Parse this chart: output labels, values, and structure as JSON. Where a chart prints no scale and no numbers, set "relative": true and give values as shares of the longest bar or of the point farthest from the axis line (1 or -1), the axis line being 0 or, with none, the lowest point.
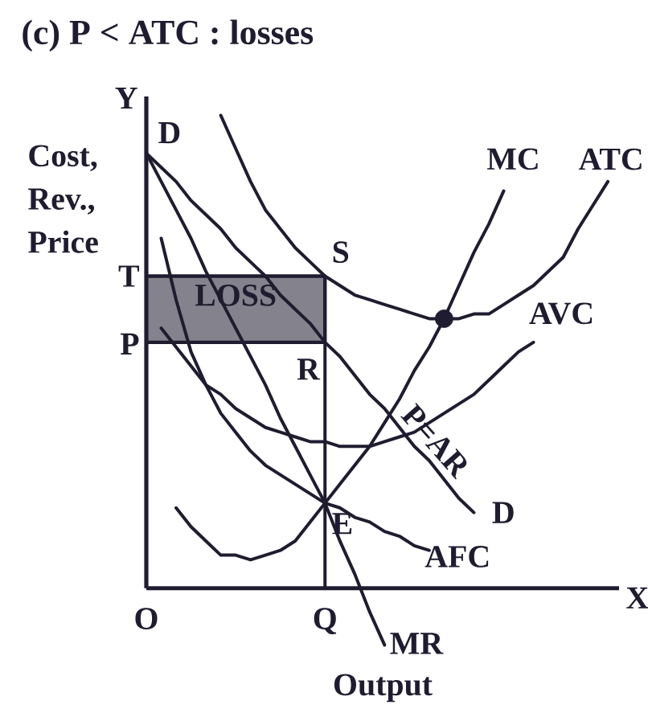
{
  "chart_data": {
    "type": "line",
    "title": "(c) P < ATC : losses",
    "xlabel": "Output",
    "ylabel": "Cost, Rev., Price",
    "relative": true,
    "legend": false,
    "categories": [
      "O",
      null,
      null,
      null,
      null,
      null,
      null,
      null,
      null,
      null,
      null,
      null,
      "Q",
      null,
      null,
      null,
      null,
      null,
      null,
      null,
      null,
      null,
      null,
      null,
      null,
      null,
      null,
      null,
      null,
      null,
      null,
      null
    ],
    "series": [
      {
        "name": "LOSS",
        "color": "#201c30",
        "values": [
          0.66,
          0.66,
          0.66,
          0.66,
          0.66,
          0.66,
          0.66,
          0.66,
          0.66,
          0.66,
          0.66,
          0.66,
          0.66,
          null,
          null,
          null,
          null,
          null,
          null,
          null,
          null,
          null,
          null,
          null,
          null,
          null,
          null,
          null,
          null,
          null,
          null,
          null
        ],
        "lower": [
          0.52,
          0.52,
          0.52,
          0.52,
          0.52,
          0.52,
          0.52,
          0.52,
          0.52,
          0.52,
          0.52,
          0.52,
          0.52,
          null,
          null,
          null,
          null,
          null,
          null,
          null,
          null,
          null,
          null,
          null,
          null,
          null,
          null,
          null,
          null,
          null,
          null,
          null
        ],
        "upper": [
          0.66,
          0.66,
          0.66,
          0.66,
          0.66,
          0.66,
          0.66,
          0.66,
          0.66,
          0.66,
          0.66,
          0.66,
          0.66,
          null,
          null,
          null,
          null,
          null,
          null,
          null,
          null,
          null,
          null,
          null,
          null,
          null,
          null,
          null,
          null,
          null,
          null,
          null
        ]
      },
      {
        "color": "#201c30",
        "x": [
          "Q",
          "Q"
        ],
        "values": [
          0,
          0.66
        ]
      },
      {
        "name": "ATC",
        "color": "#201c30",
        "values": [
          null,
          null,
          null,
          null,
          null,
          1.0,
          0.93,
          0.86,
          0.8,
          0.76,
          0.72,
          0.69,
          0.66,
          0.64,
          0.62,
          0.61,
          0.6,
          0.59,
          0.58,
          0.57,
          0.57,
          0.57,
          0.58,
          0.58,
          0.6,
          0.62,
          0.64,
          0.67,
          0.7,
          0.76,
          0.81,
          0.86
        ]
      },
      {
        "name": "MC",
        "color": "#201c30",
        "values": [
          null,
          null,
          0.17,
          0.13,
          0.1,
          0.07,
          0.07,
          0.06,
          0.07,
          0.08,
          0.1,
          0.14,
          0.18,
          0.22,
          0.26,
          0.3,
          0.35,
          0.4,
          0.46,
          0.51,
          0.57,
          0.64,
          0.71,
          0.77,
          0.84,
          null,
          null,
          null,
          null,
          null,
          null,
          null
        ]
      },
      {
        "name": "AVC",
        "color": "#201c30",
        "values": [
          null,
          0.55,
          0.51,
          0.47,
          0.43,
          0.41,
          0.38,
          0.36,
          0.34,
          0.33,
          0.32,
          0.31,
          0.31,
          0.3,
          0.3,
          0.3,
          0.31,
          0.32,
          0.33,
          0.35,
          0.37,
          0.39,
          0.41,
          0.44,
          0.47,
          0.5,
          0.52,
          null,
          null,
          null,
          null,
          null
        ]
      },
      {
        "name": "AFC",
        "color": "#201c30",
        "values": [
          null,
          0.74,
          0.61,
          0.5,
          0.43,
          0.37,
          0.33,
          0.29,
          0.26,
          0.24,
          0.22,
          0.2,
          0.18,
          0.17,
          0.15,
          0.14,
          0.12,
          0.11,
          0.09,
          0.08,
          null,
          null,
          null,
          null,
          null,
          null,
          null,
          null,
          null,
          null,
          null,
          null
        ]
      },
      {
        "name": "P=AR",
        "color": "#201c30",
        "values": [
          0.92,
          0.89,
          0.86,
          0.82,
          0.79,
          0.76,
          0.72,
          0.69,
          0.66,
          0.62,
          0.59,
          0.56,
          0.52,
          0.49,
          0.45,
          0.41,
          0.38,
          0.34,
          0.3,
          0.27,
          0.23,
          0.19,
          0.16,
          null,
          null,
          null,
          null,
          null,
          null,
          null,
          null,
          null
        ]
      },
      {
        "name": "MR",
        "color": "#201c30",
        "values": [
          0.92,
          0.86,
          0.8,
          0.74,
          0.67,
          0.61,
          0.55,
          0.49,
          0.43,
          0.36,
          0.3,
          0.24,
          0.18,
          0.1,
          0.03,
          -0.05,
          -0.12,
          null,
          null,
          null,
          null,
          null,
          null,
          null,
          null,
          null,
          null,
          null,
          null,
          null,
          null,
          null
        ]
      },
      {
        "type": "scatter",
        "marker": "circle",
        "color": "#201c30",
        "values": [
          null,
          null,
          null,
          null,
          null,
          null,
          null,
          null,
          null,
          null,
          null,
          null,
          null,
          null,
          null,
          null,
          null,
          null,
          null,
          null,
          0.57,
          null,
          null,
          null,
          null,
          null,
          null,
          null,
          null,
          null,
          null,
          null
        ]
      }
    ],
    "annotations": [
      "Y",
      "X",
      "T",
      "P",
      "D",
      "D",
      {
        "text": "S",
        "x": "Q",
        "y": 0.66
      },
      {
        "text": "R",
        "x": "Q",
        "y": 0.52
      },
      {
        "text": "E",
        "x": "Q",
        "y": 0.18
      }
    ]
  }
}
